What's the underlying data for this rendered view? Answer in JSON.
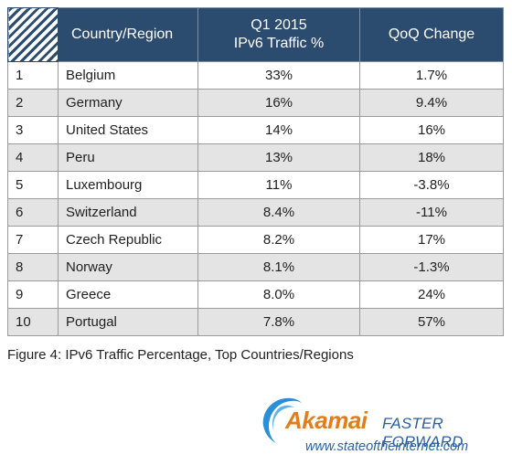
{
  "table": {
    "headers": {
      "country": "Country/Region",
      "traffic_line1": "Q1 2015",
      "traffic_line2": "IPv6 Traffic %",
      "change": "QoQ Change"
    },
    "rows": [
      {
        "rank": "1",
        "country": "Belgium",
        "traffic": "33%",
        "change": "1.7%"
      },
      {
        "rank": "2",
        "country": "Germany",
        "traffic": "16%",
        "change": "9.4%"
      },
      {
        "rank": "3",
        "country": "United States",
        "traffic": "14%",
        "change": "16%"
      },
      {
        "rank": "4",
        "country": "Peru",
        "traffic": "13%",
        "change": "18%"
      },
      {
        "rank": "5",
        "country": "Luxembourg",
        "traffic": "11%",
        "change": "-3.8%"
      },
      {
        "rank": "6",
        "country": "Switzerland",
        "traffic": "8.4%",
        "change": "-11%"
      },
      {
        "rank": "7",
        "country": "Czech Republic",
        "traffic": "8.2%",
        "change": "17%"
      },
      {
        "rank": "8",
        "country": "Norway",
        "traffic": "8.1%",
        "change": "-1.3%"
      },
      {
        "rank": "9",
        "country": "Greece",
        "traffic": "8.0%",
        "change": "24%"
      },
      {
        "rank": "10",
        "country": "Portugal",
        "traffic": "7.8%",
        "change": "57%"
      }
    ]
  },
  "caption": "Figure 4: IPv6 Traffic Percentage, Top Countries/Regions",
  "logo": {
    "brand": "Akamai",
    "tagline": "FASTER FORWARD",
    "url": "www.stateoftheinternet.com"
  },
  "colors": {
    "header_bg": "#2b4b6f",
    "alt_row_bg": "#e4e4e4",
    "brand_orange": "#e07d1c",
    "brand_blue": "#2b5f9e"
  }
}
